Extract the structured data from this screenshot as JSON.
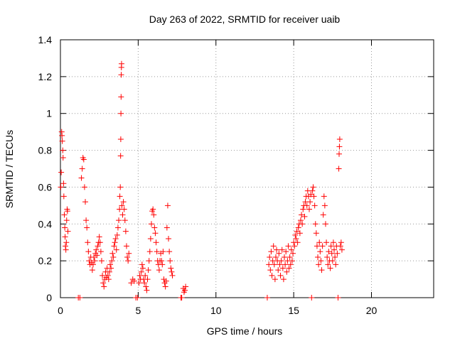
{
  "chart_data": {
    "type": "scatter",
    "title": "Day 263 of 2022, SRMTID for receiver uaib",
    "xlabel": "GPS time / hours",
    "ylabel": "SRMTID / TECUs",
    "xlim": [
      0,
      24
    ],
    "ylim": [
      0,
      1.4
    ],
    "xticks": [
      0,
      5,
      10,
      15,
      20
    ],
    "xtick_labels": [
      "0",
      "5",
      "10",
      "15",
      "20"
    ],
    "yticks": [
      0,
      0.2,
      0.4,
      0.6,
      0.8,
      1.0,
      1.2,
      1.4
    ],
    "ytick_labels": [
      "0",
      "0.2",
      "0.4",
      "0.6",
      "0.8",
      "1",
      "1.2",
      "1.4"
    ],
    "grid": true,
    "marker": "+",
    "color": "#ff0000",
    "series": [
      {
        "name": "SRMTID",
        "points": [
          [
            0.02,
            0.6
          ],
          [
            0.05,
            0.68
          ],
          [
            0.08,
            0.9
          ],
          [
            0.1,
            0.88
          ],
          [
            0.12,
            0.85
          ],
          [
            0.15,
            0.8
          ],
          [
            0.17,
            0.76
          ],
          [
            0.2,
            0.62
          ],
          [
            0.22,
            0.55
          ],
          [
            0.25,
            0.45
          ],
          [
            0.28,
            0.38
          ],
          [
            0.3,
            0.33
          ],
          [
            0.32,
            0.28
          ],
          [
            0.35,
            0.26
          ],
          [
            0.38,
            0.3
          ],
          [
            0.4,
            0.42
          ],
          [
            0.43,
            0.48
          ],
          [
            0.45,
            0.47
          ],
          [
            0.48,
            0.36
          ],
          [
            1.15,
            0.0
          ],
          [
            1.25,
            0.0
          ],
          [
            1.35,
            0.65
          ],
          [
            1.4,
            0.7
          ],
          [
            1.45,
            0.76
          ],
          [
            1.5,
            0.75
          ],
          [
            1.55,
            0.6
          ],
          [
            1.6,
            0.52
          ],
          [
            1.65,
            0.42
          ],
          [
            1.7,
            0.38
          ],
          [
            1.75,
            0.3
          ],
          [
            1.8,
            0.25
          ],
          [
            1.85,
            0.2
          ],
          [
            1.9,
            0.18
          ],
          [
            1.95,
            0.22
          ],
          [
            2.0,
            0.19
          ],
          [
            2.05,
            0.15
          ],
          [
            2.1,
            0.18
          ],
          [
            2.15,
            0.22
          ],
          [
            2.2,
            0.2
          ],
          [
            2.25,
            0.24
          ],
          [
            2.3,
            0.26
          ],
          [
            2.35,
            0.23
          ],
          [
            2.4,
            0.28
          ],
          [
            2.45,
            0.3
          ],
          [
            2.5,
            0.33
          ],
          [
            2.55,
            0.3
          ],
          [
            2.6,
            0.25
          ],
          [
            2.65,
            0.2
          ],
          [
            2.7,
            0.12
          ],
          [
            2.75,
            0.08
          ],
          [
            2.8,
            0.06
          ],
          [
            2.85,
            0.1
          ],
          [
            2.9,
            0.14
          ],
          [
            2.95,
            0.11
          ],
          [
            3.0,
            0.16
          ],
          [
            3.05,
            0.12
          ],
          [
            3.1,
            0.1
          ],
          [
            3.15,
            0.14
          ],
          [
            3.2,
            0.18
          ],
          [
            3.25,
            0.16
          ],
          [
            3.3,
            0.2
          ],
          [
            3.35,
            0.24
          ],
          [
            3.4,
            0.22
          ],
          [
            3.45,
            0.28
          ],
          [
            3.5,
            0.3
          ],
          [
            3.55,
            0.32
          ],
          [
            3.6,
            0.26
          ],
          [
            3.65,
            0.34
          ],
          [
            3.7,
            0.38
          ],
          [
            3.75,
            0.42
          ],
          [
            3.8,
            0.48
          ],
          [
            3.82,
            0.55
          ],
          [
            3.85,
            0.6
          ],
          [
            3.87,
            0.77
          ],
          [
            3.88,
            0.86
          ],
          [
            3.89,
            1.0
          ],
          [
            3.9,
            1.09
          ],
          [
            3.91,
            1.21
          ],
          [
            3.92,
            1.25
          ],
          [
            3.93,
            1.27
          ],
          [
            3.95,
            0.5
          ],
          [
            4.0,
            0.45
          ],
          [
            4.05,
            0.52
          ],
          [
            4.1,
            0.48
          ],
          [
            4.15,
            0.42
          ],
          [
            4.2,
            0.36
          ],
          [
            4.25,
            0.28
          ],
          [
            4.3,
            0.22
          ],
          [
            4.35,
            0.2
          ],
          [
            4.4,
            0.24
          ],
          [
            4.55,
            0.08
          ],
          [
            4.65,
            0.1
          ],
          [
            4.75,
            0.09
          ],
          [
            4.85,
            0.0
          ],
          [
            4.95,
            0.0
          ],
          [
            5.05,
            0.08
          ],
          [
            5.1,
            0.12
          ],
          [
            5.15,
            0.1
          ],
          [
            5.2,
            0.14
          ],
          [
            5.25,
            0.18
          ],
          [
            5.3,
            0.16
          ],
          [
            5.35,
            0.1
          ],
          [
            5.4,
            0.08
          ],
          [
            5.45,
            0.12
          ],
          [
            5.5,
            0.06
          ],
          [
            5.55,
            0.04
          ],
          [
            5.6,
            0.1
          ],
          [
            5.65,
            0.15
          ],
          [
            5.7,
            0.2
          ],
          [
            5.75,
            0.25
          ],
          [
            5.8,
            0.32
          ],
          [
            5.85,
            0.4
          ],
          [
            5.9,
            0.47
          ],
          [
            5.95,
            0.48
          ],
          [
            6.0,
            0.45
          ],
          [
            6.05,
            0.38
          ],
          [
            6.1,
            0.35
          ],
          [
            6.15,
            0.3
          ],
          [
            6.2,
            0.25
          ],
          [
            6.25,
            0.2
          ],
          [
            6.3,
            0.18
          ],
          [
            6.35,
            0.15
          ],
          [
            6.4,
            0.2
          ],
          [
            6.45,
            0.24
          ],
          [
            6.5,
            0.2
          ],
          [
            6.55,
            0.18
          ],
          [
            6.6,
            0.25
          ],
          [
            6.65,
            0.1
          ],
          [
            6.7,
            0.08
          ],
          [
            6.75,
            0.06
          ],
          [
            6.8,
            0.09
          ],
          [
            6.85,
            0.38
          ],
          [
            6.9,
            0.5
          ],
          [
            6.95,
            0.32
          ],
          [
            7.0,
            0.25
          ],
          [
            7.05,
            0.2
          ],
          [
            7.1,
            0.16
          ],
          [
            7.15,
            0.14
          ],
          [
            7.2,
            0.12
          ],
          [
            7.75,
            0.0
          ],
          [
            7.8,
            0.0
          ],
          [
            7.9,
            0.05
          ],
          [
            7.95,
            0.03
          ],
          [
            8.0,
            0.04
          ],
          [
            8.05,
            0.06
          ],
          [
            13.3,
            0.0
          ],
          [
            13.4,
            0.18
          ],
          [
            13.45,
            0.22
          ],
          [
            13.5,
            0.15
          ],
          [
            13.55,
            0.25
          ],
          [
            13.6,
            0.12
          ],
          [
            13.65,
            0.2
          ],
          [
            13.7,
            0.28
          ],
          [
            13.75,
            0.18
          ],
          [
            13.8,
            0.1
          ],
          [
            13.85,
            0.22
          ],
          [
            13.9,
            0.26
          ],
          [
            13.95,
            0.2
          ],
          [
            14.0,
            0.15
          ],
          [
            14.05,
            0.24
          ],
          [
            14.1,
            0.18
          ],
          [
            14.15,
            0.12
          ],
          [
            14.2,
            0.2
          ],
          [
            14.25,
            0.26
          ],
          [
            14.3,
            0.16
          ],
          [
            14.35,
            0.1
          ],
          [
            14.4,
            0.22
          ],
          [
            14.45,
            0.18
          ],
          [
            14.5,
            0.25
          ],
          [
            14.55,
            0.14
          ],
          [
            14.6,
            0.2
          ],
          [
            14.65,
            0.28
          ],
          [
            14.7,
            0.16
          ],
          [
            14.75,
            0.22
          ],
          [
            14.8,
            0.18
          ],
          [
            14.85,
            0.26
          ],
          [
            14.9,
            0.2
          ],
          [
            14.95,
            0.24
          ],
          [
            15.0,
            0.3
          ],
          [
            15.05,
            0.28
          ],
          [
            15.1,
            0.34
          ],
          [
            15.15,
            0.32
          ],
          [
            15.2,
            0.36
          ],
          [
            15.25,
            0.3
          ],
          [
            15.3,
            0.38
          ],
          [
            15.35,
            0.4
          ],
          [
            15.4,
            0.35
          ],
          [
            15.45,
            0.42
          ],
          [
            15.5,
            0.45
          ],
          [
            15.55,
            0.4
          ],
          [
            15.6,
            0.48
          ],
          [
            15.65,
            0.5
          ],
          [
            15.7,
            0.44
          ],
          [
            15.75,
            0.52
          ],
          [
            15.8,
            0.55
          ],
          [
            15.85,
            0.5
          ],
          [
            15.9,
            0.58
          ],
          [
            15.95,
            0.55
          ],
          [
            16.0,
            0.48
          ],
          [
            16.05,
            0.52
          ],
          [
            16.1,
            0.56
          ],
          [
            16.15,
            0.0
          ],
          [
            16.2,
            0.58
          ],
          [
            16.25,
            0.6
          ],
          [
            16.3,
            0.55
          ],
          [
            16.35,
            0.5
          ],
          [
            16.4,
            0.4
          ],
          [
            16.45,
            0.35
          ],
          [
            16.5,
            0.28
          ],
          [
            16.55,
            0.22
          ],
          [
            16.6,
            0.18
          ],
          [
            16.65,
            0.3
          ],
          [
            16.7,
            0.25
          ],
          [
            16.75,
            0.2
          ],
          [
            16.8,
            0.15
          ],
          [
            16.85,
            0.28
          ],
          [
            16.9,
            0.45
          ],
          [
            16.95,
            0.55
          ],
          [
            17.0,
            0.5
          ],
          [
            17.05,
            0.4
          ],
          [
            17.1,
            0.3
          ],
          [
            17.15,
            0.22
          ],
          [
            17.2,
            0.18
          ],
          [
            17.25,
            0.25
          ],
          [
            17.3,
            0.2
          ],
          [
            17.35,
            0.16
          ],
          [
            17.4,
            0.28
          ],
          [
            17.45,
            0.24
          ],
          [
            17.5,
            0.2
          ],
          [
            17.55,
            0.3
          ],
          [
            17.6,
            0.26
          ],
          [
            17.65,
            0.22
          ],
          [
            17.7,
            0.18
          ],
          [
            17.75,
            0.28
          ],
          [
            17.8,
            0.24
          ],
          [
            17.85,
            0.0
          ],
          [
            17.9,
            0.7
          ],
          [
            17.92,
            0.78
          ],
          [
            17.94,
            0.82
          ],
          [
            17.96,
            0.86
          ],
          [
            18.0,
            0.28
          ],
          [
            18.05,
            0.3
          ],
          [
            18.1,
            0.26
          ]
        ]
      }
    ]
  }
}
